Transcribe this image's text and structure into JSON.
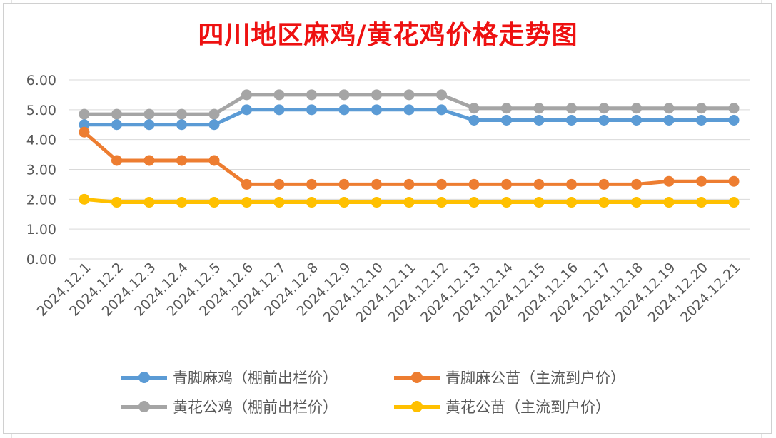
{
  "chart_data": {
    "type": "line",
    "title": "四川地区麻鸡/黄花鸡价格走势图",
    "xlabel": "",
    "ylabel": "",
    "ylim": [
      0,
      6
    ],
    "yticks": [
      "0.00",
      "1.00",
      "2.00",
      "3.00",
      "4.00",
      "5.00",
      "6.00"
    ],
    "grid": true,
    "legend_position": "bottom",
    "categories": [
      "2024.12.1",
      "2024.12.2",
      "2024.12.3",
      "2024.12.4",
      "2024.12.5",
      "2024.12.6",
      "2024.12.7",
      "2024.12.8",
      "2024.12.9",
      "2024.12.10",
      "2024.12.11",
      "2024.12.12",
      "2024.12.13",
      "2024.12.14",
      "2024.12.15",
      "2024.12.16",
      "2024.12.17",
      "2024.12.18",
      "2024.12.19",
      "2024.12.20",
      "2024.12.21"
    ],
    "series": [
      {
        "name": "青脚麻鸡（棚前出栏价）",
        "color": "#5b9bd5",
        "values": [
          4.5,
          4.5,
          4.5,
          4.5,
          4.5,
          5.0,
          5.0,
          5.0,
          5.0,
          5.0,
          5.0,
          5.0,
          4.65,
          4.65,
          4.65,
          4.65,
          4.65,
          4.65,
          4.65,
          4.65,
          4.65
        ]
      },
      {
        "name": "青脚麻公苗（主流到户价）",
        "color": "#ed7d31",
        "values": [
          4.25,
          3.3,
          3.3,
          3.3,
          3.3,
          2.5,
          2.5,
          2.5,
          2.5,
          2.5,
          2.5,
          2.5,
          2.5,
          2.5,
          2.5,
          2.5,
          2.5,
          2.5,
          2.6,
          2.6,
          2.6
        ]
      },
      {
        "name": "黄花公鸡（棚前出栏价）",
        "color": "#a5a5a5",
        "values": [
          4.85,
          4.85,
          4.85,
          4.85,
          4.85,
          5.5,
          5.5,
          5.5,
          5.5,
          5.5,
          5.5,
          5.5,
          5.05,
          5.05,
          5.05,
          5.05,
          5.05,
          5.05,
          5.05,
          5.05,
          5.05
        ]
      },
      {
        "name": "黄花公苗（主流到户价）",
        "color": "#ffc000",
        "values": [
          2.0,
          1.9,
          1.9,
          1.9,
          1.9,
          1.9,
          1.9,
          1.9,
          1.9,
          1.9,
          1.9,
          1.9,
          1.9,
          1.9,
          1.9,
          1.9,
          1.9,
          1.9,
          1.9,
          1.9,
          1.9
        ]
      }
    ]
  }
}
